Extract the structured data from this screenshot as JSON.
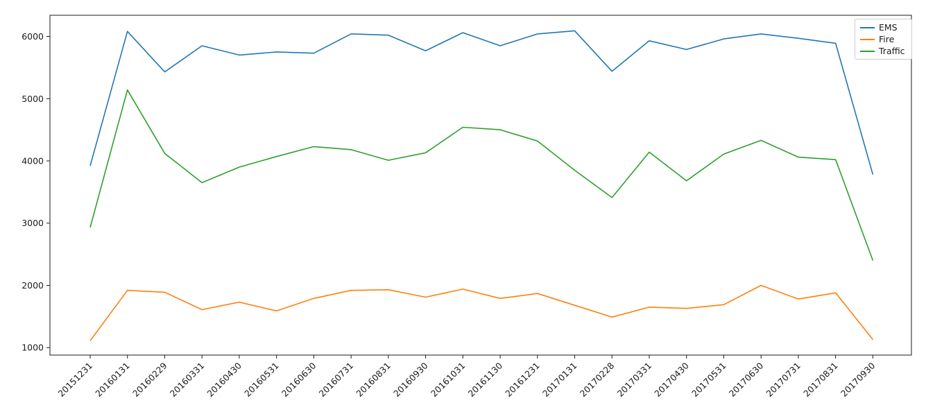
{
  "figure": {
    "background_color": "#ffffff",
    "axes_edge_color": "#1a1a1a",
    "legend_border_color": "#cccccc"
  },
  "chart_data": {
    "type": "line",
    "title": "",
    "xlabel": "",
    "ylabel": "",
    "grid": false,
    "legend_position": "upper right",
    "tick_label_rotation": 45,
    "categories": [
      "20151231",
      "20160131",
      "20160229",
      "20160331",
      "20160430",
      "20160531",
      "20160630",
      "20160731",
      "20160831",
      "20160930",
      "20161031",
      "20161130",
      "20161231",
      "20170131",
      "20170228",
      "20170331",
      "20170430",
      "20170531",
      "20170630",
      "20170731",
      "20170831",
      "20170930"
    ],
    "yticks": [
      1000,
      2000,
      3000,
      4000,
      5000,
      6000
    ],
    "ylim": [
      880,
      6340
    ],
    "series": [
      {
        "name": "EMS",
        "color": "#1f77b4",
        "values": [
          3920,
          6080,
          5430,
          5850,
          5700,
          5750,
          5730,
          6040,
          6020,
          5770,
          6060,
          5850,
          6040,
          6090,
          5440,
          5930,
          5790,
          5960,
          6040,
          5970,
          5890,
          3780
        ]
      },
      {
        "name": "Fire",
        "color": "#ff7f0e",
        "values": [
          1110,
          1920,
          1890,
          1610,
          1730,
          1590,
          1790,
          1920,
          1930,
          1810,
          1940,
          1790,
          1870,
          1680,
          1490,
          1650,
          1630,
          1690,
          2000,
          1780,
          1880,
          1130
        ]
      },
      {
        "name": "Traffic",
        "color": "#2ca02c",
        "values": [
          2930,
          5140,
          4120,
          3650,
          3900,
          4070,
          4230,
          4180,
          4010,
          4130,
          4540,
          4500,
          4320,
          3850,
          3410,
          4140,
          3680,
          4110,
          4330,
          4060,
          4020,
          2400
        ]
      }
    ]
  }
}
